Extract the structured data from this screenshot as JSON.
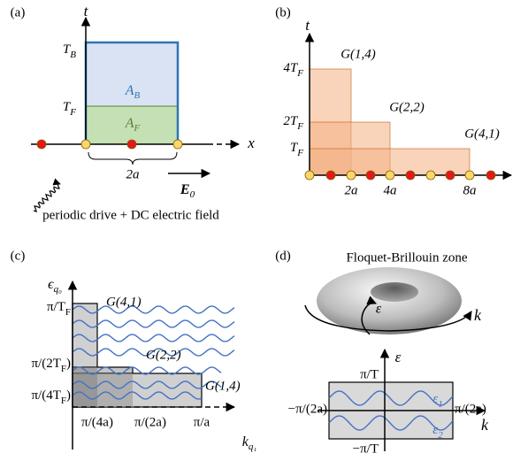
{
  "panel_a": {
    "label": "(a)",
    "t_axis": "t",
    "x_axis": "x",
    "T_B": {
      "text": "T",
      "sub": "B"
    },
    "T_F": {
      "text": "T",
      "sub": "F"
    },
    "A_B": {
      "text": "A",
      "sub": "B"
    },
    "A_F": {
      "text": "A",
      "sub": "F"
    },
    "spacing": "2a",
    "field": {
      "text": "E",
      "sub": "0"
    },
    "caption": "periodic drive + DC electric field"
  },
  "panel_b": {
    "label": "(b)",
    "t_axis": "t",
    "y_ticks": [
      {
        "text": "4T",
        "sub": "F"
      },
      {
        "text": "2T",
        "sub": "F"
      },
      {
        "text": "T",
        "sub": "F"
      }
    ],
    "x_ticks": [
      "2a",
      "4a",
      "8a"
    ],
    "boxes": [
      "G(1,4)",
      "G(2,2)",
      "G(4,1)"
    ]
  },
  "panel_c": {
    "label": "(c)",
    "y_axis": {
      "text": "ϵ",
      "sub": "q₀"
    },
    "x_axis": {
      "text": "k",
      "sub": "q₁"
    },
    "y_ticks": [
      {
        "text": "π/T",
        "sub": "F"
      },
      {
        "text": "π/(2T",
        "sub": "F",
        "tail": ")"
      },
      {
        "text": "π/(4T",
        "sub": "F",
        "tail": ")"
      }
    ],
    "x_ticks": [
      "π/(4a)",
      "π/(2a)",
      "π/a"
    ],
    "boxes": [
      "G(4,1)",
      "G(2,2)",
      "G(1,4)"
    ]
  },
  "panel_d": {
    "label": "(d)",
    "title": "Floquet-Brillouin zone",
    "torus_eps": "ε",
    "torus_k": "k",
    "y_axis": "ε",
    "x_axis": "k",
    "y_ticks": [
      "π/T",
      "−π/T"
    ],
    "x_ticks": [
      "−π/(2a)",
      "π/(2a)"
    ],
    "bands": [
      {
        "text": "ε",
        "sub": "1"
      },
      {
        "text": "ε",
        "sub": "2"
      }
    ]
  }
}
